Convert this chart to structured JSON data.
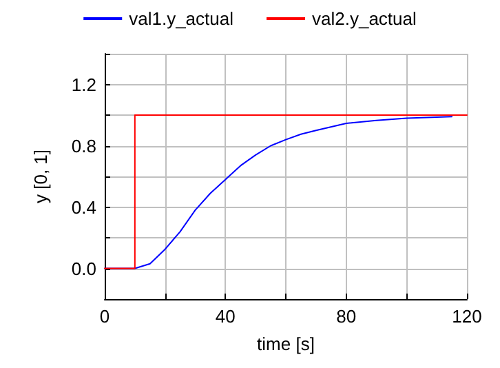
{
  "chart_data": {
    "type": "line",
    "xlabel": "time [s]",
    "ylabel": "y [0, 1]",
    "xlim": [
      0,
      120
    ],
    "ylim": [
      -0.2,
      1.4
    ],
    "xticks": [
      0,
      {
        "value": 20,
        "label": null
      },
      40,
      {
        "value": 60,
        "label": null
      },
      80,
      {
        "value": 100,
        "label": null
      },
      120
    ],
    "yticks": [
      {
        "value": -0.2,
        "label": null
      },
      {
        "value": 0,
        "label": "0.0"
      },
      {
        "value": 0.2,
        "label": null
      },
      {
        "value": 0.4,
        "label": "0.4"
      },
      {
        "value": 0.6,
        "label": null
      },
      {
        "value": 0.8,
        "label": "0.8"
      },
      {
        "value": 1.0,
        "label": null
      },
      {
        "value": 1.2,
        "label": "1.2"
      },
      {
        "value": 1.4,
        "label": null
      }
    ],
    "grid": true,
    "legend": "top",
    "marker": "none",
    "line_style": "solid",
    "series": [
      {
        "name": "val1.y_actual",
        "color": "#0000ff",
        "x": [
          0,
          10,
          15,
          20,
          25,
          30,
          35,
          40,
          45,
          50,
          55,
          60,
          65,
          70,
          80,
          90,
          100,
          115
        ],
        "values": [
          0,
          0,
          0.03,
          0.125,
          0.24,
          0.38,
          0.49,
          0.58,
          0.67,
          0.74,
          0.8,
          0.84,
          0.875,
          0.9,
          0.946,
          0.965,
          0.98,
          0.99
        ]
      },
      {
        "name": "val2.y_actual",
        "color": "#ff0000",
        "x": [
          0,
          10,
          10,
          120
        ],
        "values": [
          0,
          0,
          1,
          1
        ]
      }
    ]
  }
}
